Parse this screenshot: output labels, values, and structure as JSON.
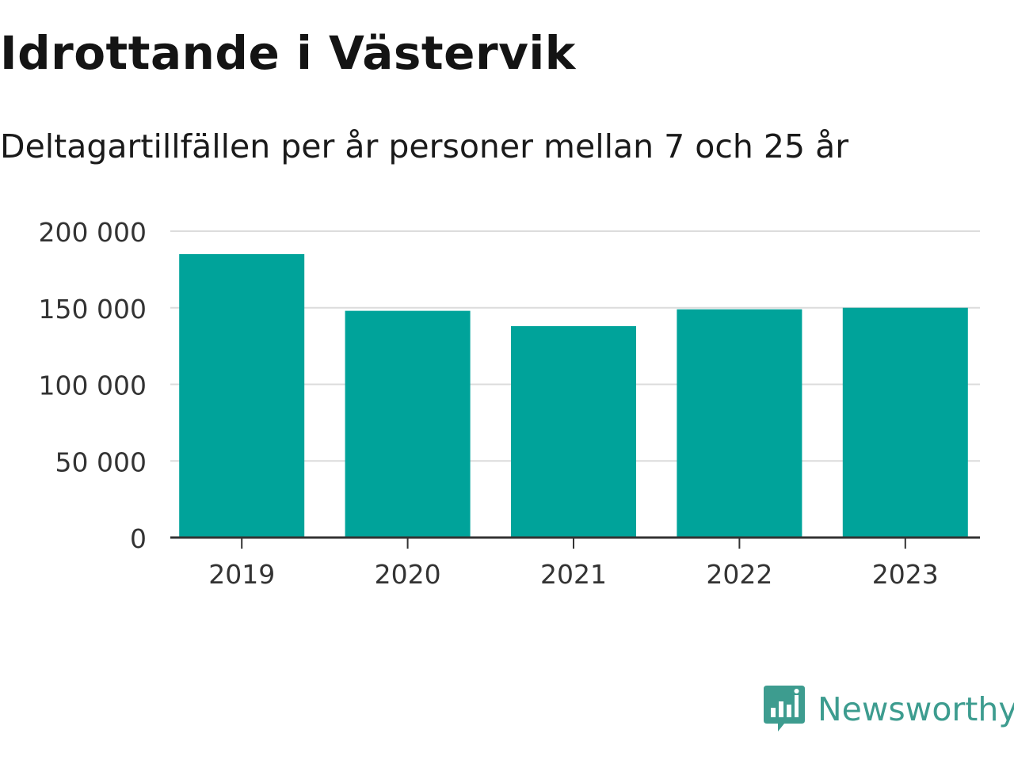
{
  "chart_data": {
    "type": "bar",
    "title": "Idrottande i Västervik",
    "subtitle": "Deltagartillfällen per år personer mellan 7 och 25 år",
    "categories": [
      "2019",
      "2020",
      "2021",
      "2022",
      "2023"
    ],
    "values": [
      185000,
      148000,
      138000,
      149000,
      150000
    ],
    "ylim": [
      0,
      200000
    ],
    "yticks": [
      0,
      50000,
      100000,
      150000,
      200000
    ],
    "ytick_labels": [
      "0",
      "50 000",
      "100 000",
      "150 000",
      "200 000"
    ],
    "grid": true,
    "bar_color": "#00a39a",
    "xlabel": "",
    "ylabel": ""
  },
  "branding": {
    "logo_text": "Newsworthy",
    "logo_icon": "newsworthy-logo-icon",
    "logo_color": "#3d9c8f"
  }
}
